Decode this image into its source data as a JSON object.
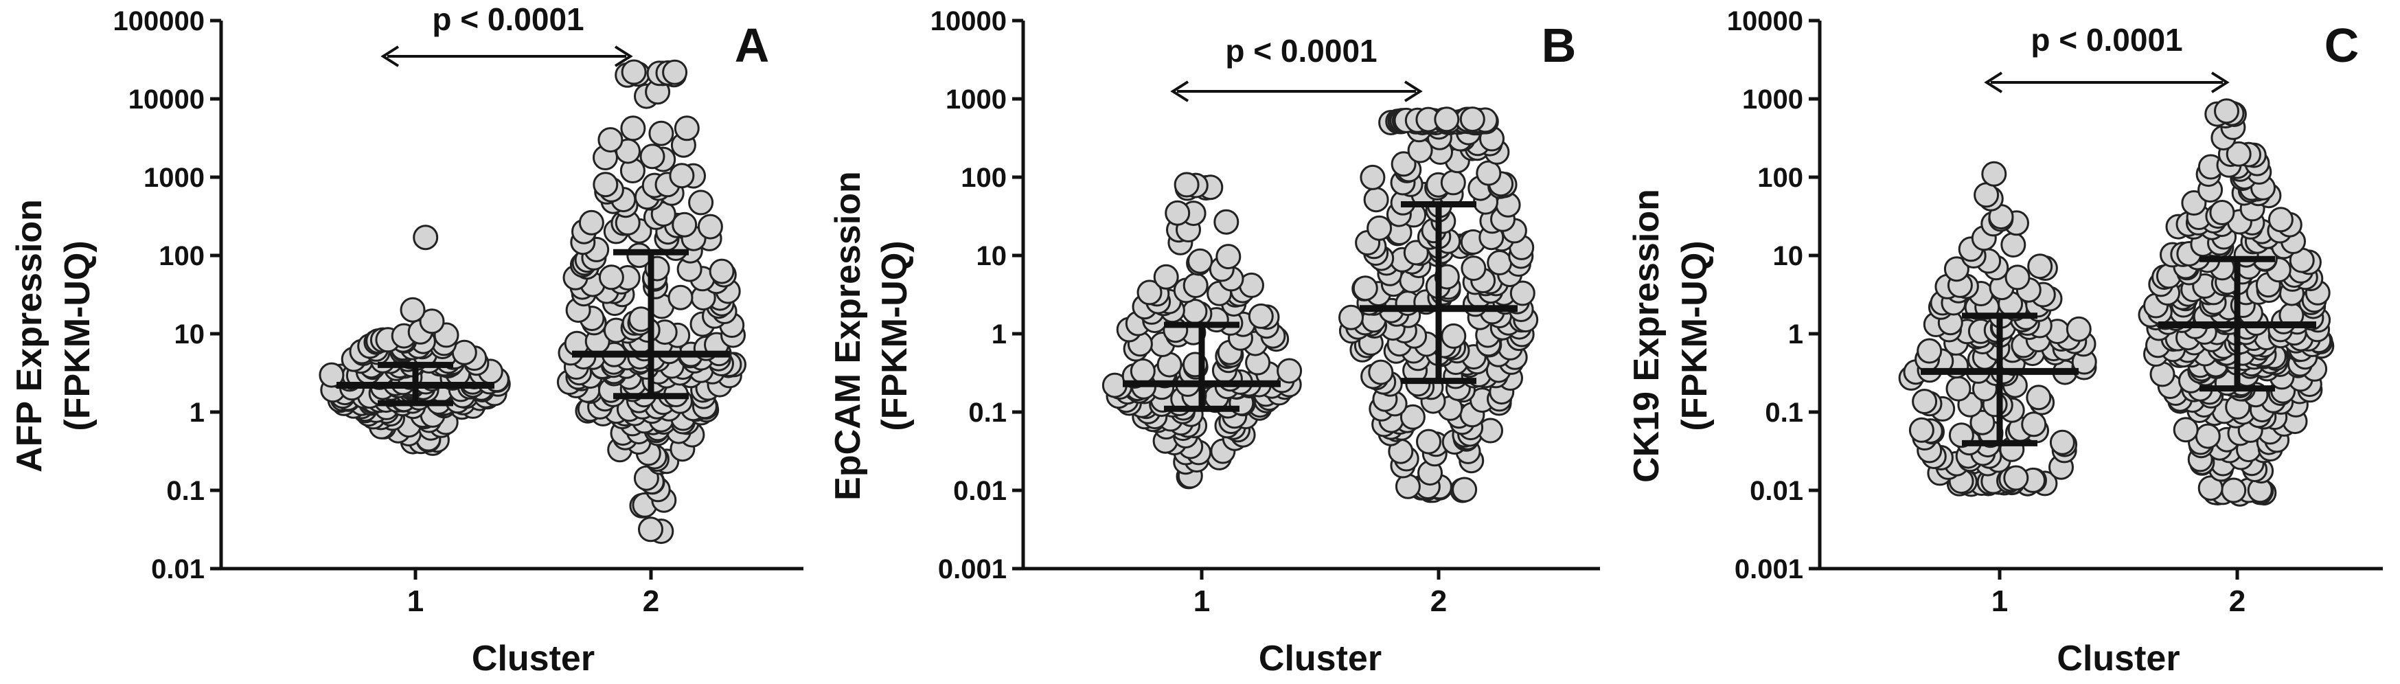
{
  "chart_data": [
    {
      "type": "scatter",
      "panel_label": "A",
      "ylabel": [
        "AFP Expression",
        "(FPKM-UQ)"
      ],
      "xlabel": "Cluster",
      "y_scale": "log",
      "ylim": [
        0.01,
        100000
      ],
      "y_ticks": [
        0.01,
        0.1,
        1,
        10,
        100,
        1000,
        10000,
        100000
      ],
      "y_tick_labels": [
        "0.01",
        "0.1",
        "1",
        "10",
        "100",
        "1000",
        "10000",
        "100000"
      ],
      "categories": [
        "1",
        "2"
      ],
      "annotation": "p < 0.0001",
      "marker_color": "#d4d4d4",
      "summary": [
        {
          "category": "1",
          "median": 2.2,
          "q1": 1.3,
          "q3": 4.0,
          "n_points": 170,
          "min": 0.4,
          "max": 170
        },
        {
          "category": "2",
          "median": 5.5,
          "q1": 1.6,
          "q3": 110,
          "n_points": 230,
          "min": 0.03,
          "max": 22000
        }
      ]
    },
    {
      "type": "scatter",
      "panel_label": "B",
      "ylabel": [
        "EpCAM Expression",
        "(FPKM-UQ)"
      ],
      "xlabel": "Cluster",
      "y_scale": "log",
      "ylim": [
        0.001,
        10000
      ],
      "y_ticks": [
        0.001,
        0.01,
        0.1,
        1,
        10,
        100,
        1000,
        10000
      ],
      "y_tick_labels": [
        "0.001",
        "0.01",
        "0.1",
        "1",
        "10",
        "100",
        "1000",
        "10000"
      ],
      "categories": [
        "1",
        "2"
      ],
      "annotation": "p < 0.0001",
      "marker_color": "#d4d4d4",
      "summary": [
        {
          "category": "1",
          "median": 0.23,
          "q1": 0.11,
          "q3": 1.3,
          "n_points": 150,
          "min": 0.015,
          "max": 80
        },
        {
          "category": "2",
          "median": 2.1,
          "q1": 0.25,
          "q3": 45,
          "n_points": 260,
          "min": 0.01,
          "max": 550
        }
      ]
    },
    {
      "type": "scatter",
      "panel_label": "C",
      "ylabel": [
        "CK19 Expression",
        "(FPKM-UQ)"
      ],
      "xlabel": "Cluster",
      "y_scale": "log",
      "ylim": [
        0.001,
        10000
      ],
      "y_ticks": [
        0.001,
        0.01,
        0.1,
        1,
        10,
        100,
        1000,
        10000
      ],
      "y_tick_labels": [
        "0.001",
        "0.01",
        "0.1",
        "1",
        "10",
        "100",
        "1000",
        "10000"
      ],
      "categories": [
        "1",
        "2"
      ],
      "annotation": "p < 0.0001",
      "marker_color": "#d4d4d4",
      "summary": [
        {
          "category": "1",
          "median": 0.33,
          "q1": 0.04,
          "q3": 1.7,
          "n_points": 150,
          "min": 0.012,
          "max": 110
        },
        {
          "category": "2",
          "median": 1.3,
          "q1": 0.2,
          "q3": 9,
          "n_points": 280,
          "min": 0.009,
          "max": 700
        }
      ]
    }
  ]
}
